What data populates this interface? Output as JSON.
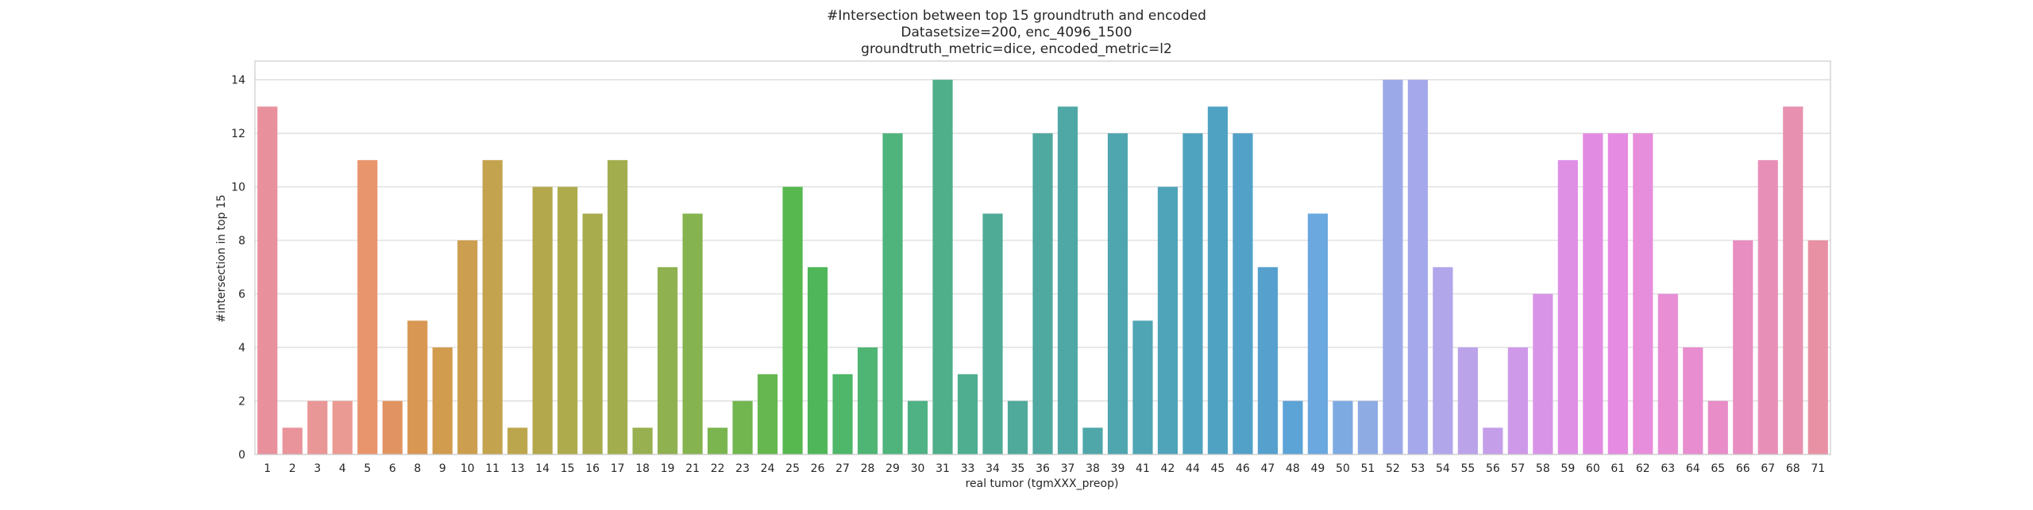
{
  "chart_data": {
    "type": "bar",
    "title_lines": [
      "#Intersection between top 15 groundtruth and encoded",
      "Datasetsize=200, enc_4096_1500",
      "groundtruth_metric=dice, encoded_metric=l2"
    ],
    "xlabel": "real tumor (tgmXXX_preop)",
    "ylabel": "#intersection in top 15",
    "ylim": [
      0,
      14.7
    ],
    "yticks": [
      0,
      2,
      4,
      6,
      8,
      10,
      12,
      14
    ],
    "grid": true,
    "legend": "none",
    "categories": [
      "1",
      "2",
      "3",
      "4",
      "5",
      "6",
      "8",
      "9",
      "10",
      "11",
      "13",
      "14",
      "15",
      "16",
      "17",
      "18",
      "19",
      "21",
      "22",
      "23",
      "24",
      "25",
      "26",
      "27",
      "28",
      "29",
      "30",
      "31",
      "33",
      "34",
      "35",
      "36",
      "37",
      "38",
      "39",
      "41",
      "42",
      "44",
      "45",
      "46",
      "47",
      "48",
      "49",
      "50",
      "51",
      "52",
      "53",
      "54",
      "55",
      "56",
      "57",
      "58",
      "59",
      "60",
      "61",
      "62",
      "63",
      "64",
      "65",
      "66",
      "67",
      "68",
      "71"
    ],
    "values": [
      13,
      1,
      2,
      2,
      11,
      2,
      5,
      4,
      8,
      11,
      1,
      10,
      10,
      9,
      11,
      1,
      7,
      9,
      1,
      2,
      3,
      10,
      7,
      3,
      4,
      12,
      2,
      14,
      3,
      9,
      2,
      12,
      13,
      1,
      12,
      5,
      10,
      12,
      13,
      12,
      7,
      2,
      9,
      2,
      2,
      14,
      14,
      7,
      4,
      1,
      4,
      6,
      11,
      12,
      12,
      12,
      6,
      4,
      2,
      8,
      11,
      13,
      8
    ],
    "colors": [
      "#e8919d",
      "#e9939a",
      "#e99697",
      "#ea9a92",
      "#e8956d",
      "#e19362",
      "#d99754",
      "#d29c4f",
      "#cb9f4f",
      "#c3a34e",
      "#bca64d",
      "#b4a84d",
      "#aeab4d",
      "#a8ac4d",
      "#a2ae4d",
      "#98b04f",
      "#8fb14f",
      "#85b34f",
      "#7bb54f",
      "#71b64f",
      "#66b74f",
      "#57b850",
      "#4fb75a",
      "#4fb769",
      "#4fb574",
      "#4fb47c",
      "#4fb284",
      "#4faf8a",
      "#4fad90",
      "#4fab95",
      "#4faa9b",
      "#4fa9a0",
      "#4fa8a5",
      "#4fa7aa",
      "#4fa6af",
      "#4fa5b4",
      "#4fa4b9",
      "#4fa3be",
      "#50a2c3",
      "#52a1c9",
      "#56a0ce",
      "#5ca3d6",
      "#6aa8df",
      "#7eaae2",
      "#8fabe4",
      "#9ca9e8",
      "#a5a8ea",
      "#b1a6ea",
      "#bba3ea",
      "#c59eea",
      "#cf99ea",
      "#d895e8",
      "#de90e5",
      "#e28be3",
      "#e58be1",
      "#e68edb",
      "#e78ed5",
      "#e88dcf",
      "#e88dc8",
      "#e88ec1",
      "#e88fb8",
      "#e890af",
      "#e891a5"
    ]
  }
}
